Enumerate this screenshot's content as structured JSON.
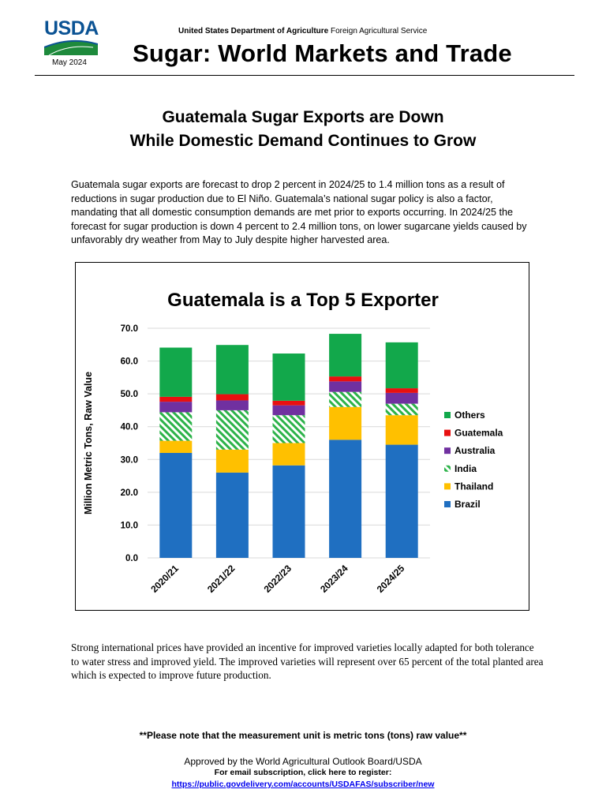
{
  "header": {
    "logo_text": "USDA",
    "date": "May 2024",
    "agency_bold": "United States Department of Agriculture",
    "agency_rest": " Foreign Agricultural Service",
    "title": "Sugar: World Markets and Trade"
  },
  "headline": {
    "line1": "Guatemala Sugar Exports are Down",
    "line2": "While Domestic Demand Continues to Grow"
  },
  "intro_paragraph": "Guatemala sugar exports are forecast to drop 2 percent in 2024/25 to 1.4 million tons as a result of reductions in sugar production due to El Niño. Guatemala’s national sugar policy is also a factor, mandating that all domestic consumption demands are met prior to exports occurring. In 2024/25 the forecast for sugar production is down 4 percent to 2.4 million tons, on lower sugarcane yields caused by unfavorably dry weather from May to July despite higher harvested area.",
  "chart_data": {
    "type": "bar",
    "stacked": true,
    "title": "Guatemala is a Top 5 Exporter",
    "xlabel": "",
    "ylabel": "Million Metric Tons, Raw Value",
    "ylim": [
      0,
      70
    ],
    "yticks": [
      "0.0",
      "10.0",
      "20.0",
      "30.0",
      "40.0",
      "50.0",
      "60.0",
      "70.0"
    ],
    "grid": true,
    "legend_position": "right",
    "categories": [
      "2020/21",
      "2021/22",
      "2022/23",
      "2023/24",
      "2024/25"
    ],
    "series": [
      {
        "name": "Brazil",
        "color": "#1f6fc1",
        "pattern": false,
        "values": [
          32.0,
          26.0,
          28.2,
          36.0,
          34.5
        ]
      },
      {
        "name": "Thailand",
        "color": "#ffc000",
        "pattern": false,
        "values": [
          3.7,
          7.0,
          6.8,
          10.0,
          9.0
        ]
      },
      {
        "name": "India",
        "color": "#2db34a",
        "pattern": true,
        "values": [
          8.7,
          12.0,
          8.5,
          4.6,
          3.5
        ]
      },
      {
        "name": "Australia",
        "color": "#7030a0",
        "pattern": false,
        "values": [
          3.2,
          3.0,
          3.0,
          3.2,
          3.3
        ]
      },
      {
        "name": "Guatemala",
        "color": "#e81010",
        "pattern": false,
        "values": [
          1.5,
          1.9,
          1.4,
          1.5,
          1.4
        ]
      },
      {
        "name": "Others",
        "color": "#12a84b",
        "pattern": false,
        "values": [
          15.0,
          15.0,
          14.4,
          13.0,
          14.0
        ]
      }
    ]
  },
  "body_paragraph": "Strong international prices have provided an incentive for improved varieties locally adapted for both tolerance to water stress and improved yield. The improved varieties will represent over 65 percent of the total planted area which is expected to improve future production.",
  "note": "**Please note that the measurement unit is metric tons (tons) raw value**",
  "footer": {
    "approved": "Approved by the World Agricultural Outlook Board/USDA",
    "subscribe": "For email subscription, click here to register:",
    "link": "https://public.govdelivery.com/accounts/USDAFAS/subscriber/new"
  },
  "colors": {
    "logo_blue": "#0b5394",
    "logo_green": "#1e8a3c"
  }
}
